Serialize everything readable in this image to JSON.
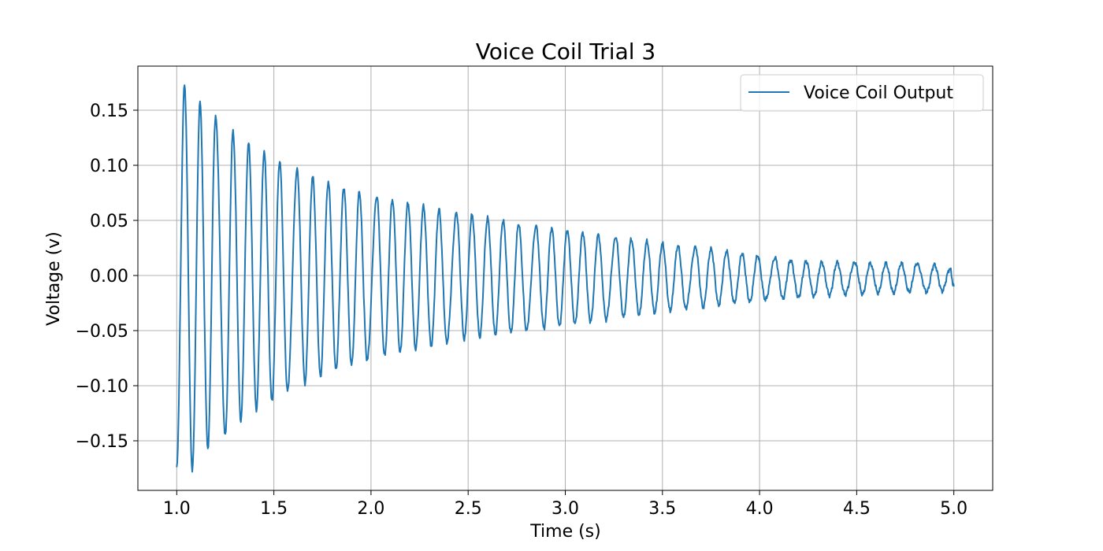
{
  "chart_data": {
    "type": "line",
    "title": "Voice Coil Trial 3",
    "xlabel": "Time (s)",
    "ylabel": "Voltage (v)",
    "xlim": [
      0.8,
      5.2
    ],
    "ylim": [
      -0.195,
      0.19
    ],
    "xticks": [
      1.0,
      1.5,
      2.0,
      2.5,
      3.0,
      3.5,
      4.0,
      4.5,
      5.0
    ],
    "xtick_labels": [
      "1.0",
      "1.5",
      "2.0",
      "2.5",
      "3.0",
      "3.5",
      "4.0",
      "4.5",
      "5.0"
    ],
    "yticks": [
      -0.15,
      -0.1,
      -0.05,
      0.0,
      0.05,
      0.1,
      0.15
    ],
    "ytick_labels": [
      "−0.15",
      "−0.10",
      "−0.05",
      "0.00",
      "0.05",
      "0.10",
      "0.15"
    ],
    "grid": true,
    "legend": {
      "placement": "top-right",
      "entries": [
        "Voice Coil Output"
      ]
    },
    "series": [
      {
        "name": "Voice Coil Output",
        "color": "#1f77b4",
        "x_start": 1.0,
        "x_end": 5.0,
        "period_s": 0.0817,
        "start_value": -0.175,
        "peaks": [
          [
            1.04,
            0.173
          ],
          [
            1.12,
            0.157
          ],
          [
            1.2,
            0.144
          ],
          [
            1.29,
            0.131
          ],
          [
            1.37,
            0.12
          ],
          [
            1.45,
            0.112
          ],
          [
            1.53,
            0.104
          ],
          [
            1.62,
            0.096
          ],
          [
            1.7,
            0.09
          ],
          [
            1.78,
            0.085
          ],
          [
            1.86,
            0.08
          ],
          [
            1.94,
            0.076
          ],
          [
            2.03,
            0.072
          ],
          [
            2.11,
            0.069
          ],
          [
            2.19,
            0.066
          ],
          [
            2.27,
            0.063
          ],
          [
            2.35,
            0.06
          ],
          [
            2.44,
            0.057
          ],
          [
            2.52,
            0.055
          ],
          [
            2.6,
            0.052
          ],
          [
            2.68,
            0.05
          ],
          [
            2.76,
            0.047
          ],
          [
            2.85,
            0.045
          ],
          [
            2.93,
            0.043
          ],
          [
            3.01,
            0.041
          ],
          [
            3.09,
            0.039
          ],
          [
            3.17,
            0.037
          ],
          [
            3.26,
            0.035
          ],
          [
            3.34,
            0.033
          ],
          [
            3.42,
            0.031
          ],
          [
            3.5,
            0.029
          ],
          [
            3.58,
            0.027
          ],
          [
            3.67,
            0.026
          ],
          [
            3.75,
            0.024
          ],
          [
            3.83,
            0.022
          ],
          [
            3.91,
            0.02
          ],
          [
            3.99,
            0.018
          ],
          [
            4.08,
            0.016
          ],
          [
            4.16,
            0.014
          ],
          [
            4.24,
            0.013
          ],
          [
            4.32,
            0.012
          ],
          [
            4.4,
            0.012
          ],
          [
            4.49,
            0.012
          ],
          [
            4.57,
            0.011
          ],
          [
            4.65,
            0.011
          ],
          [
            4.73,
            0.011
          ],
          [
            4.81,
            0.011
          ],
          [
            4.9,
            0.01
          ],
          [
            4.98,
            0.006
          ]
        ],
        "troughs": [
          [
            1.0,
            -0.175
          ],
          [
            1.08,
            -0.176
          ],
          [
            1.16,
            -0.157
          ],
          [
            1.25,
            -0.145
          ],
          [
            1.33,
            -0.132
          ],
          [
            1.41,
            -0.122
          ],
          [
            1.49,
            -0.114
          ],
          [
            1.57,
            -0.105
          ],
          [
            1.66,
            -0.098
          ],
          [
            1.74,
            -0.092
          ],
          [
            1.82,
            -0.086
          ],
          [
            1.9,
            -0.081
          ],
          [
            1.98,
            -0.077
          ],
          [
            2.07,
            -0.073
          ],
          [
            2.15,
            -0.07
          ],
          [
            2.23,
            -0.067
          ],
          [
            2.31,
            -0.064
          ],
          [
            2.39,
            -0.061
          ],
          [
            2.48,
            -0.058
          ],
          [
            2.56,
            -0.056
          ],
          [
            2.64,
            -0.054
          ],
          [
            2.72,
            -0.052
          ],
          [
            2.8,
            -0.05
          ],
          [
            2.89,
            -0.048
          ],
          [
            2.97,
            -0.046
          ],
          [
            3.05,
            -0.044
          ],
          [
            3.13,
            -0.042
          ],
          [
            3.21,
            -0.04
          ],
          [
            3.3,
            -0.038
          ],
          [
            3.38,
            -0.036
          ],
          [
            3.46,
            -0.034
          ],
          [
            3.54,
            -0.032
          ],
          [
            3.62,
            -0.03
          ],
          [
            3.71,
            -0.029
          ],
          [
            3.79,
            -0.027
          ],
          [
            3.87,
            -0.025
          ],
          [
            3.95,
            -0.024
          ],
          [
            4.03,
            -0.022
          ],
          [
            4.12,
            -0.021
          ],
          [
            4.2,
            -0.02
          ],
          [
            4.28,
            -0.019
          ],
          [
            4.36,
            -0.018
          ],
          [
            4.44,
            -0.017
          ],
          [
            4.53,
            -0.017
          ],
          [
            4.61,
            -0.016
          ],
          [
            4.69,
            -0.016
          ],
          [
            4.77,
            -0.015
          ],
          [
            4.86,
            -0.015
          ],
          [
            4.94,
            -0.014
          ],
          [
            5.0,
            -0.01
          ]
        ]
      }
    ]
  }
}
